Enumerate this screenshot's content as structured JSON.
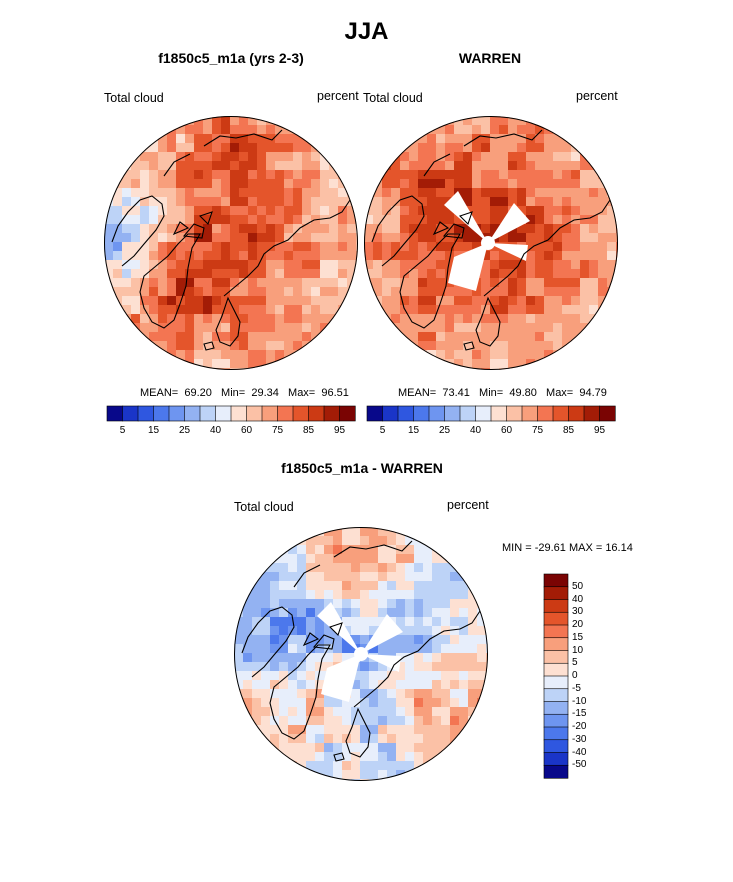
{
  "chart_data": [
    {
      "type": "heatmap",
      "projection": "north-polar-stereographic",
      "title": "f1850c5_m1a (yrs 2-3)",
      "left_label": "Total cloud",
      "right_label": "percent",
      "stats": {
        "mean_label": "MEAN=",
        "mean": "69.20",
        "min_label": "Min=",
        "min": "29.34",
        "max_label": "Max=",
        "max": "96.51"
      },
      "colorbar": {
        "levels": [
          5,
          10,
          15,
          20,
          25,
          30,
          40,
          50,
          60,
          70,
          75,
          80,
          85,
          90,
          95
        ],
        "tick_labels": [
          "5",
          "15",
          "25",
          "40",
          "60",
          "75",
          "85",
          "95"
        ]
      }
    },
    {
      "type": "heatmap",
      "projection": "north-polar-stereographic",
      "title": "WARREN",
      "left_label": "Total cloud",
      "right_label": "percent",
      "stats": {
        "mean_label": "MEAN=",
        "mean": "73.41",
        "min_label": "Min=",
        "min": "49.80",
        "max_label": "Max=",
        "max": "94.79"
      },
      "colorbar": {
        "levels": [
          5,
          10,
          15,
          20,
          25,
          30,
          40,
          50,
          60,
          70,
          75,
          80,
          85,
          90,
          95
        ],
        "tick_labels": [
          "5",
          "15",
          "25",
          "40",
          "60",
          "75",
          "85",
          "95"
        ]
      }
    },
    {
      "type": "heatmap",
      "projection": "north-polar-stereographic",
      "title": "f1850c5_m1a - WARREN",
      "left_label": "Total cloud",
      "right_label": "percent",
      "stats": {
        "text": "MIN = -29.61 MAX =  16.14",
        "min": -29.61,
        "max": 16.14
      },
      "colorbar": {
        "orientation": "vertical",
        "tick_labels": [
          "50",
          "40",
          "30",
          "20",
          "15",
          "10",
          "5",
          "0",
          "-5",
          "-10",
          "-15",
          "-20",
          "-30",
          "-40",
          "-50"
        ]
      }
    }
  ],
  "figure": {
    "title": "JJA"
  },
  "palettes": {
    "abs": [
      "#08088a",
      "#1a35c8",
      "#2f57e0",
      "#4c78ec",
      "#6e95f0",
      "#93b2f2",
      "#bdd3f7",
      "#e7eefb",
      "#fde0d2",
      "#fbc1a6",
      "#f89f7c",
      "#f37552",
      "#e4552b",
      "#cc3a14",
      "#a31c06",
      "#7a0403"
    ],
    "diff": [
      "#08088a",
      "#1a35c8",
      "#2f57e0",
      "#4c78ec",
      "#6e95f0",
      "#93b2f2",
      "#bdd3f7",
      "#e7eefb",
      "#fde0d2",
      "#fbc1a6",
      "#f89f7c",
      "#f37552",
      "#e4552b",
      "#cc3a14",
      "#a31c06",
      "#7a0403"
    ]
  }
}
